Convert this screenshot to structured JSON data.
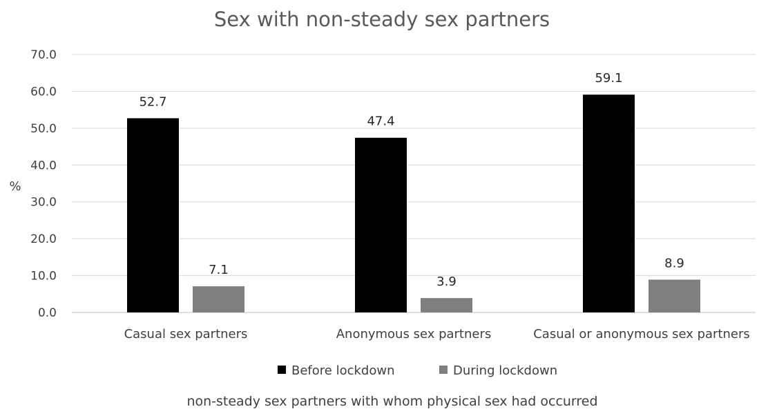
{
  "chart_data": {
    "type": "bar",
    "title": "Sex with non-steady sex partners",
    "xlabel": "non-steady sex partners with whom physical sex had occurred",
    "ylabel": "%",
    "ylim": [
      0,
      70
    ],
    "yticks": [
      "0.0",
      "10.0",
      "20.0",
      "30.0",
      "40.0",
      "50.0",
      "60.0",
      "70.0"
    ],
    "ytick_values": [
      0,
      10,
      20,
      30,
      40,
      50,
      60,
      70
    ],
    "categories": [
      "Casual sex partners",
      "Anonymous sex partners",
      "Casual or anonymous sex partners"
    ],
    "series": [
      {
        "name": "Before lockdown",
        "color": "#000000",
        "values": [
          52.7,
          47.4,
          59.1
        ],
        "labels": [
          "52.7",
          "47.4",
          "59.1"
        ]
      },
      {
        "name": "During lockdown",
        "color": "#7f7f7f",
        "values": [
          7.1,
          3.9,
          8.9
        ],
        "labels": [
          "7.1",
          "3.9",
          "8.9"
        ]
      }
    ],
    "grid": true,
    "legend_position": "bottom"
  }
}
